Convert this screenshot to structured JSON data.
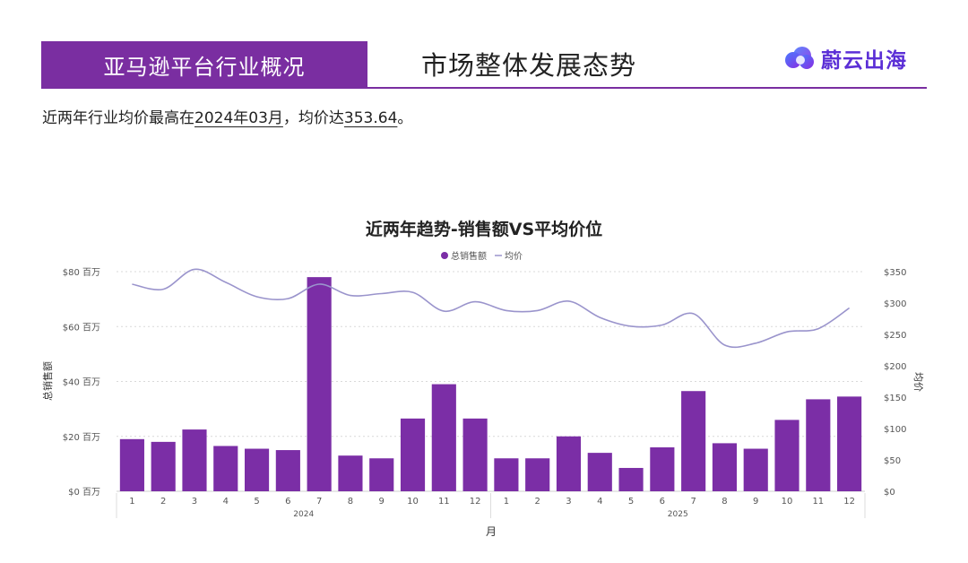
{
  "header": {
    "section_title": "亚马逊平台行业概况",
    "page_title": "市场整体发展态势",
    "logo_text": "蔚云出海"
  },
  "summary": {
    "part1": "近两年行业均价最高在",
    "highlight_month": "2024年03月",
    "part2": "，均价达",
    "highlight_value": "353.64",
    "part3": "。"
  },
  "colors": {
    "accent": "#7a2ea1",
    "bar": "#7b2ea6",
    "line": "#9a94cc",
    "logo": "#5b2fd6"
  },
  "chart_data": {
    "type": "bar",
    "title": "近两年趋势-销售额VS平均价位",
    "legend": {
      "items": [
        "总销售额",
        "均价"
      ],
      "placement": "top-center"
    },
    "xlabel": "月",
    "ylabel": "总销售额",
    "y2label": "均价",
    "categories": [
      "1",
      "2",
      "3",
      "4",
      "5",
      "6",
      "7",
      "8",
      "9",
      "10",
      "11",
      "12",
      "1",
      "2",
      "3",
      "4",
      "5",
      "6",
      "7",
      "8",
      "9",
      "10",
      "11",
      "12"
    ],
    "year_labels": [
      {
        "label": "2024",
        "center_index": 5.5
      },
      {
        "label": "2025",
        "center_index": 17.5
      }
    ],
    "y_ticks": [
      "$0 百万",
      "$20 百万",
      "$40 百万",
      "$60 百万",
      "$80 百万"
    ],
    "y_tick_values": [
      0,
      20,
      40,
      60,
      80
    ],
    "ylim": [
      0,
      80
    ],
    "y2_ticks": [
      "$0",
      "$50",
      "$100",
      "$150",
      "$200",
      "$250",
      "$300",
      "$350"
    ],
    "y2_tick_values": [
      0,
      50,
      100,
      150,
      200,
      250,
      300,
      350
    ],
    "y2lim": [
      0,
      350
    ],
    "series": [
      {
        "name": "总销售额",
        "type": "bar",
        "axis": "left",
        "values": [
          19,
          18,
          22.5,
          16.5,
          15.5,
          15,
          78,
          13,
          12,
          26.5,
          39,
          26.5,
          12,
          12,
          20,
          14,
          8.5,
          16,
          36.5,
          17.5,
          15.5,
          26,
          33.5,
          34.5
        ]
      },
      {
        "name": "均价",
        "type": "line",
        "axis": "right",
        "values": [
          330,
          322,
          353.64,
          333,
          310,
          307,
          330,
          312,
          315,
          317,
          287,
          302,
          288,
          288,
          303,
          277,
          263,
          265,
          283,
          233,
          236,
          254,
          259,
          292
        ]
      }
    ]
  }
}
